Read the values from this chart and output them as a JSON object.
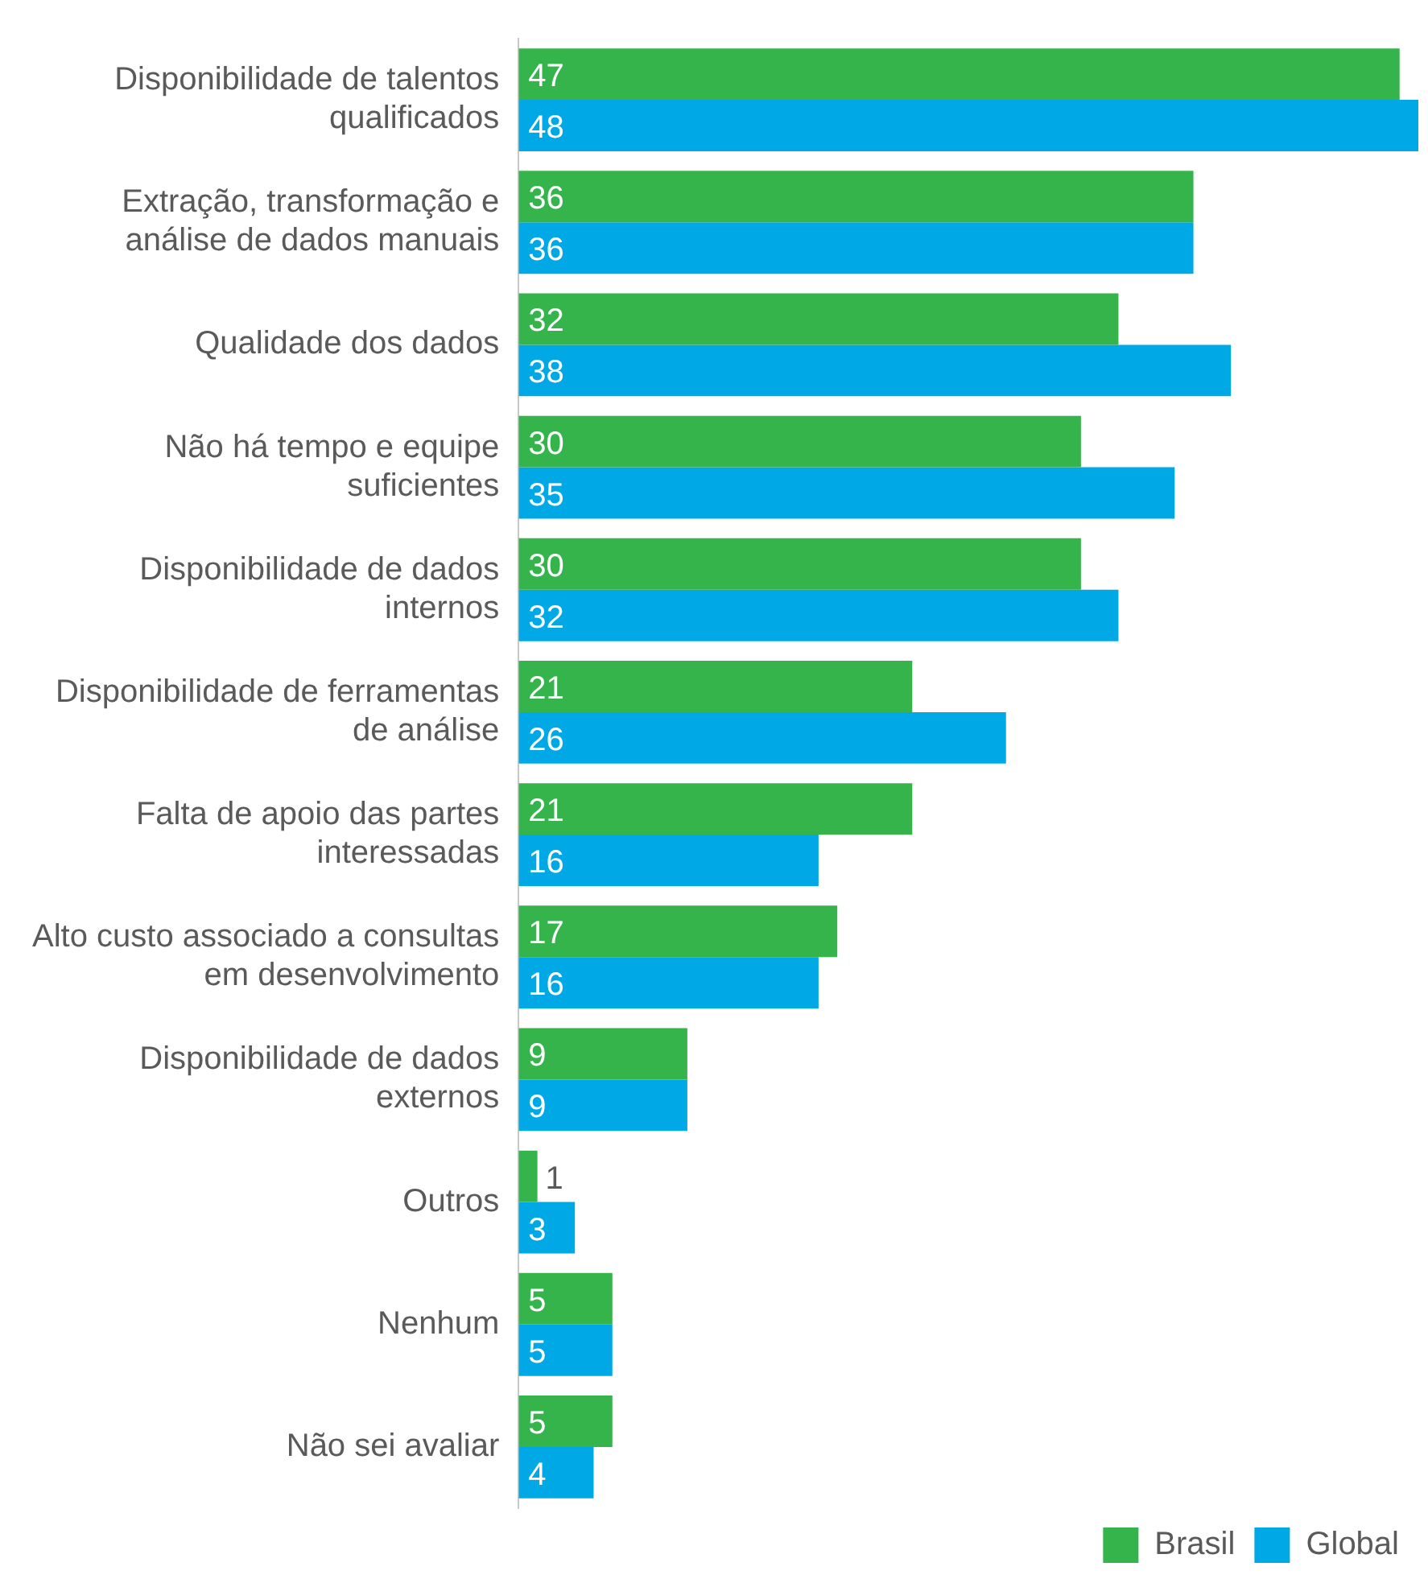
{
  "chart_data": {
    "type": "bar",
    "orientation": "horizontal",
    "xlim": [
      0,
      48
    ],
    "tick_labels": "y",
    "legend": "bottom right",
    "data_labels": true,
    "categories": [
      "Disponibilidade de talentos qualificados",
      "Extração, transformação e análise de dados manuais",
      "Qualidade dos dados",
      "Não há tempo e equipe suficientes",
      "Disponibilidade de dados internos",
      "Disponibilidade de ferramentas de análise",
      "Falta de apoio das partes interessadas",
      "Alto custo associado a consultas em desenvolvimento",
      "Disponibilidade de dados externos",
      "Outros",
      "Nenhum",
      "Não sei avaliar"
    ],
    "series": [
      {
        "name": "Brasil",
        "color": "#34b44a",
        "values": [
          47,
          36,
          32,
          30,
          30,
          21,
          21,
          17,
          9,
          1,
          5,
          5
        ]
      },
      {
        "name": "Global",
        "color": "#00a9e6",
        "values": [
          48,
          36,
          38,
          35,
          32,
          26,
          16,
          16,
          9,
          3,
          5,
          4
        ]
      }
    ]
  }
}
